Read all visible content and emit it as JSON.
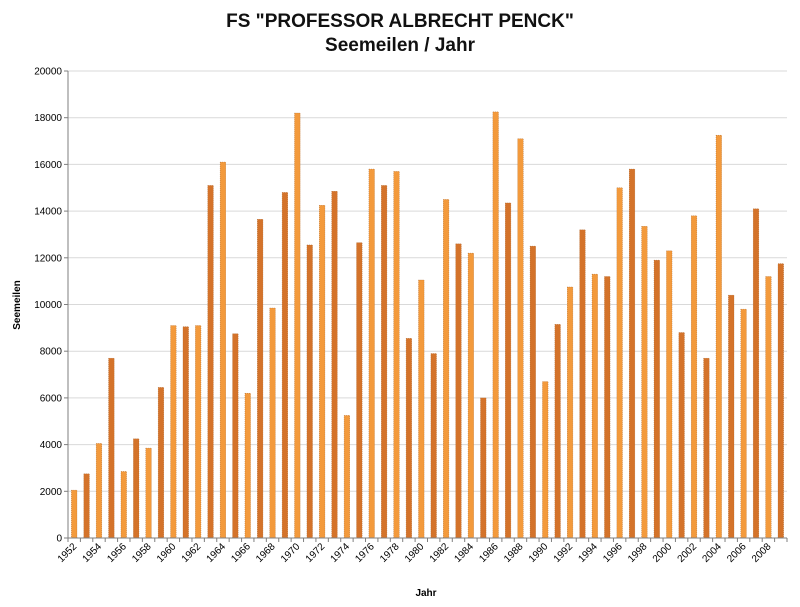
{
  "chart_data": {
    "type": "bar",
    "title": "FS \"PROFESSOR ALBRECHT PENCK\"",
    "subtitle": "Seemeilen / Jahr",
    "xlabel": "Jahr",
    "ylabel": "Seemeilen",
    "ylim": [
      0,
      20000
    ],
    "yticks": [
      "0",
      "2000",
      "4000",
      "6000",
      "8000",
      "10000",
      "12000",
      "14000",
      "16000",
      "18000",
      "20000"
    ],
    "xticks": [
      "1952",
      "1954",
      "1956",
      "1958",
      "1960",
      "1962",
      "1964",
      "1966",
      "1968",
      "1970",
      "1972",
      "1974",
      "1976",
      "1978",
      "1980",
      "1982",
      "1984",
      "1986",
      "1988",
      "1990",
      "1992",
      "1994",
      "1996",
      "1998",
      "2000",
      "2002",
      "2004",
      "2006",
      "2008"
    ],
    "grid": true,
    "legend": "none",
    "colors": {
      "light": "#f39a3c",
      "dark": "#d4732a",
      "axis": "#7f7f7f",
      "grid": "#d9d9d9"
    },
    "categories": [
      "1952",
      "1953",
      "1954",
      "1955",
      "1956",
      "1957",
      "1958",
      "1959",
      "1960",
      "1961",
      "1962",
      "1963",
      "1964",
      "1965",
      "1966",
      "1967",
      "1968",
      "1969",
      "1970",
      "1971",
      "1972",
      "1973",
      "1974",
      "1975",
      "1976",
      "1977",
      "1978",
      "1979",
      "1980",
      "1981",
      "1982",
      "1983",
      "1984",
      "1985",
      "1986",
      "1987",
      "1988",
      "1989",
      "1990",
      "1991",
      "1992",
      "1993",
      "1994",
      "1995",
      "1996",
      "1997",
      "1998",
      "1999",
      "2000",
      "2001",
      "2002",
      "2003",
      "2004",
      "2005",
      "2006",
      "2007",
      "2008",
      "2009"
    ],
    "values": [
      2050,
      2750,
      4050,
      7700,
      2850,
      4250,
      3850,
      6450,
      9100,
      9050,
      9100,
      15100,
      16100,
      8750,
      6200,
      13650,
      9850,
      14800,
      18200,
      12550,
      14250,
      14850,
      5250,
      12650,
      15800,
      15100,
      15700,
      8550,
      11050,
      7900,
      14500,
      12600,
      12200,
      6000,
      18250,
      14350,
      17100,
      12500,
      6700,
      9150,
      10750,
      13200,
      11300,
      11200,
      15000,
      15800,
      13350,
      11900,
      12300,
      8800,
      13800,
      7700,
      17250,
      10400,
      9800,
      14100,
      11200,
      11750
    ]
  }
}
